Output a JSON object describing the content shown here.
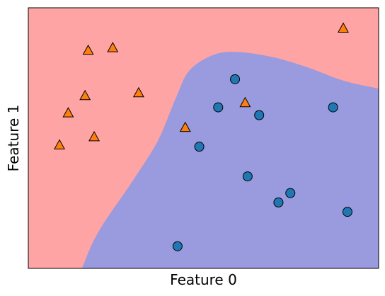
{
  "chart_data": {
    "type": "scatter",
    "title": "",
    "xlabel": "Feature 0",
    "ylabel": "Feature 1",
    "xlim": [
      0,
      1
    ],
    "ylim": [
      0,
      1
    ],
    "grid": false,
    "ticks": "none",
    "region_colors": {
      "class_0": "#FFA4A4",
      "class_1": "#9A9ADE"
    },
    "region_boundary": {
      "description": "blue region below/right of curve",
      "points": [
        [
          0.153,
          0.0
        ],
        [
          0.2,
          0.14
        ],
        [
          0.3,
          0.34
        ],
        [
          0.37,
          0.49
        ],
        [
          0.42,
          0.65
        ],
        [
          0.46,
          0.76
        ],
        [
          0.53,
          0.82
        ],
        [
          0.6,
          0.83
        ],
        [
          0.7,
          0.81
        ],
        [
          0.8,
          0.77
        ],
        [
          0.9,
          0.72
        ],
        [
          1.0,
          0.69
        ]
      ]
    },
    "series": [
      {
        "marker": "triangle",
        "color": "#FF7F0E",
        "points": [
          [
            0.089,
            0.473
          ],
          [
            0.114,
            0.596
          ],
          [
            0.162,
            0.662
          ],
          [
            0.188,
            0.504
          ],
          [
            0.171,
            0.836
          ],
          [
            0.241,
            0.846
          ],
          [
            0.315,
            0.673
          ],
          [
            0.448,
            0.54
          ],
          [
            0.619,
            0.635
          ],
          [
            0.899,
            0.921
          ]
        ]
      },
      {
        "marker": "circle",
        "color": "#1F77B4",
        "points": [
          [
            0.426,
            0.085
          ],
          [
            0.488,
            0.467
          ],
          [
            0.542,
            0.618
          ],
          [
            0.59,
            0.726
          ],
          [
            0.626,
            0.353
          ],
          [
            0.659,
            0.588
          ],
          [
            0.714,
            0.253
          ],
          [
            0.748,
            0.289
          ],
          [
            0.911,
            0.217
          ],
          [
            0.87,
            0.618
          ]
        ]
      }
    ]
  }
}
